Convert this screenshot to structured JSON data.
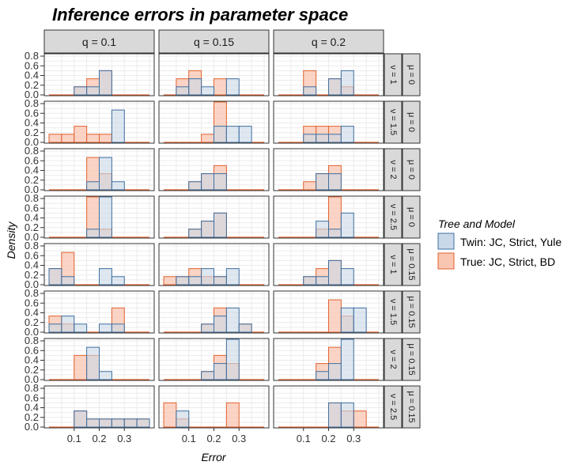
{
  "chart_data": {
    "type": "bar",
    "title": "Inference errors in parameter space",
    "xlabel": "Error",
    "ylabel": "Density",
    "bin_edges": [
      0,
      0.05,
      0.1,
      0.15,
      0.2,
      0.25,
      0.3,
      0.35,
      0.4
    ],
    "xlim": [
      0,
      0.4
    ],
    "ylim": [
      0,
      0.8
    ],
    "x_ticks": [
      "0.1",
      "0.2",
      "0.3"
    ],
    "x_tick_values": [
      0.1,
      0.2,
      0.3
    ],
    "y_ticks": [
      "0.0",
      "0.2",
      "0.4",
      "0.6",
      "0.8"
    ],
    "y_tick_values": [
      0,
      0.2,
      0.4,
      0.6,
      0.8
    ],
    "col_facets": [
      "q = 0.1",
      "q = 0.15",
      "q = 0.2"
    ],
    "row_facets": [
      {
        "nu": "ν = 1",
        "mu": "μ = 0"
      },
      {
        "nu": "ν = 1.5",
        "mu": "μ = 0"
      },
      {
        "nu": "ν = 2",
        "mu": "μ = 0"
      },
      {
        "nu": "ν = 2.5",
        "mu": "μ = 0"
      },
      {
        "nu": "ν = 1",
        "mu": "μ = 0.15"
      },
      {
        "nu": "ν = 1.5",
        "mu": "μ = 0.15"
      },
      {
        "nu": "ν = 2",
        "mu": "μ = 0.15"
      },
      {
        "nu": "ν = 2.5",
        "mu": "μ = 0.15"
      }
    ],
    "legend": {
      "title": "Tree and Model",
      "position": "right",
      "items": [
        {
          "label": "Twin: JC, Strict, Yule",
          "fill": "#c9d8e8",
          "stroke": "#3f6fa0"
        },
        {
          "label": "True: JC, Strict, BD",
          "fill": "#f9c6b2",
          "stroke": "#e2622f"
        }
      ]
    },
    "colors": {
      "twin_fill": "#c9d8e8",
      "twin_stroke": "#3f6fa0",
      "true_fill": "#f9c6b2",
      "true_stroke": "#e2622f",
      "strip_bg": "#d9d9d9",
      "grid": "#ebebeb"
    },
    "panels": [
      [
        {
          "twin": [
            0,
            0,
            0.167,
            0.167,
            0.5,
            0,
            0,
            0
          ],
          "true": [
            0,
            0,
            0.167,
            0.333,
            0.5,
            0,
            0,
            0
          ]
        },
        {
          "twin": [
            0,
            0.167,
            0.333,
            0.167,
            0,
            0.333,
            0,
            0
          ],
          "true": [
            0,
            0.333,
            0.5,
            0,
            0.333,
            0,
            0,
            0
          ]
        },
        {
          "twin": [
            0,
            0,
            0.167,
            0,
            0.333,
            0.5,
            0,
            0
          ],
          "true": [
            0,
            0,
            0.5,
            0,
            0.333,
            0.167,
            0,
            0
          ]
        }
      ],
      [
        {
          "twin": [
            0,
            0,
            0,
            0,
            0,
            0.667,
            0,
            0
          ],
          "true": [
            0.167,
            0.167,
            0.333,
            0.167,
            0.167,
            0,
            0,
            0
          ]
        },
        {
          "twin": [
            0,
            0,
            0,
            0,
            0.333,
            0.333,
            0.333,
            0
          ],
          "true": [
            0,
            0,
            0,
            0.167,
            0.833,
            0,
            0,
            0
          ]
        },
        {
          "twin": [
            0,
            0,
            0.167,
            0.167,
            0.167,
            0.333,
            0,
            0
          ],
          "true": [
            0,
            0,
            0.333,
            0.333,
            0.333,
            0,
            0,
            0
          ]
        }
      ],
      [
        {
          "twin": [
            0,
            0,
            0,
            0.167,
            0.667,
            0.167,
            0,
            0
          ],
          "true": [
            0,
            0,
            0,
            0.667,
            0.333,
            0,
            0,
            0
          ]
        },
        {
          "twin": [
            0,
            0,
            0.167,
            0.333,
            0.333,
            0,
            0,
            0
          ],
          "true": [
            0,
            0,
            0.167,
            0.333,
            0.5,
            0,
            0,
            0
          ]
        },
        {
          "twin": [
            0,
            0,
            0,
            0.333,
            0.333,
            0,
            0,
            0
          ],
          "true": [
            0,
            0,
            0.167,
            0.333,
            0.5,
            0,
            0,
            0
          ]
        }
      ],
      [
        {
          "twin": [
            0,
            0,
            0,
            0.167,
            0.833,
            0,
            0,
            0
          ],
          "true": [
            0,
            0,
            0,
            0.833,
            0.167,
            0,
            0,
            0
          ]
        },
        {
          "twin": [
            0,
            0,
            0.167,
            0.333,
            0.5,
            0,
            0,
            0
          ],
          "true": [
            0,
            0,
            0.167,
            0.333,
            0.5,
            0,
            0,
            0
          ]
        },
        {
          "twin": [
            0,
            0,
            0,
            0.333,
            0.167,
            0.5,
            0,
            0
          ],
          "true": [
            0,
            0,
            0,
            0.167,
            0.833,
            0,
            0,
            0
          ]
        }
      ],
      [
        {
          "twin": [
            0.333,
            0.167,
            0,
            0,
            0.333,
            0.167,
            0,
            0
          ],
          "true": [
            0.333,
            0.667,
            0,
            0,
            0,
            0,
            0,
            0
          ]
        },
        {
          "twin": [
            0,
            0.167,
            0.167,
            0.333,
            0.167,
            0.333,
            0,
            0
          ],
          "true": [
            0.167,
            0.167,
            0.333,
            0.167,
            0.167,
            0,
            0,
            0
          ]
        },
        {
          "twin": [
            0,
            0,
            0.167,
            0.167,
            0.5,
            0.333,
            0,
            0
          ],
          "true": [
            0,
            0,
            0.167,
            0.333,
            0.5,
            0,
            0,
            0
          ]
        }
      ],
      [
        {
          "twin": [
            0.167,
            0.333,
            0.167,
            0,
            0.167,
            0.167,
            0,
            0
          ],
          "true": [
            0.333,
            0.167,
            0,
            0,
            0,
            0.5,
            0,
            0
          ]
        },
        {
          "twin": [
            0,
            0,
            0,
            0.167,
            0.333,
            0.5,
            0.167,
            0
          ],
          "true": [
            0,
            0,
            0,
            0.167,
            0.5,
            0,
            0.167,
            0
          ]
        },
        {
          "twin": [
            0,
            0,
            0,
            0,
            0,
            0.5,
            0.5,
            0
          ],
          "true": [
            0,
            0,
            0,
            0,
            0.667,
            0.333,
            0,
            0
          ]
        }
      ],
      [
        {
          "twin": [
            0,
            0,
            0,
            0.667,
            0.167,
            0,
            0,
            0
          ],
          "true": [
            0,
            0,
            0.5,
            0.5,
            0,
            0,
            0,
            0
          ]
        },
        {
          "twin": [
            0,
            0,
            0,
            0.167,
            0.333,
            0.833,
            0,
            0
          ],
          "true": [
            0,
            0,
            0,
            0.167,
            0.5,
            0.333,
            0,
            0
          ]
        },
        {
          "twin": [
            0,
            0,
            0,
            0.167,
            0.333,
            0.833,
            0,
            0
          ],
          "true": [
            0,
            0,
            0,
            0.333,
            0.667,
            0,
            0,
            0
          ]
        }
      ],
      [
        {
          "twin": [
            0,
            0,
            0.333,
            0.167,
            0.167,
            0.167,
            0.167,
            0.167
          ],
          "true": [
            0,
            0,
            0.333,
            0.167,
            0.167,
            0.167,
            0.167,
            0.167
          ]
        },
        {
          "twin": [
            0,
            0.333,
            0,
            0,
            0,
            0,
            0,
            0
          ],
          "true": [
            0.5,
            0.167,
            0,
            0,
            0,
            0.5,
            0,
            0
          ]
        },
        {
          "twin": [
            0,
            0,
            0,
            0,
            0.5,
            0.5,
            0,
            0
          ],
          "true": [
            0,
            0,
            0,
            0,
            0.5,
            0.333,
            0.333,
            0
          ]
        }
      ]
    ]
  }
}
